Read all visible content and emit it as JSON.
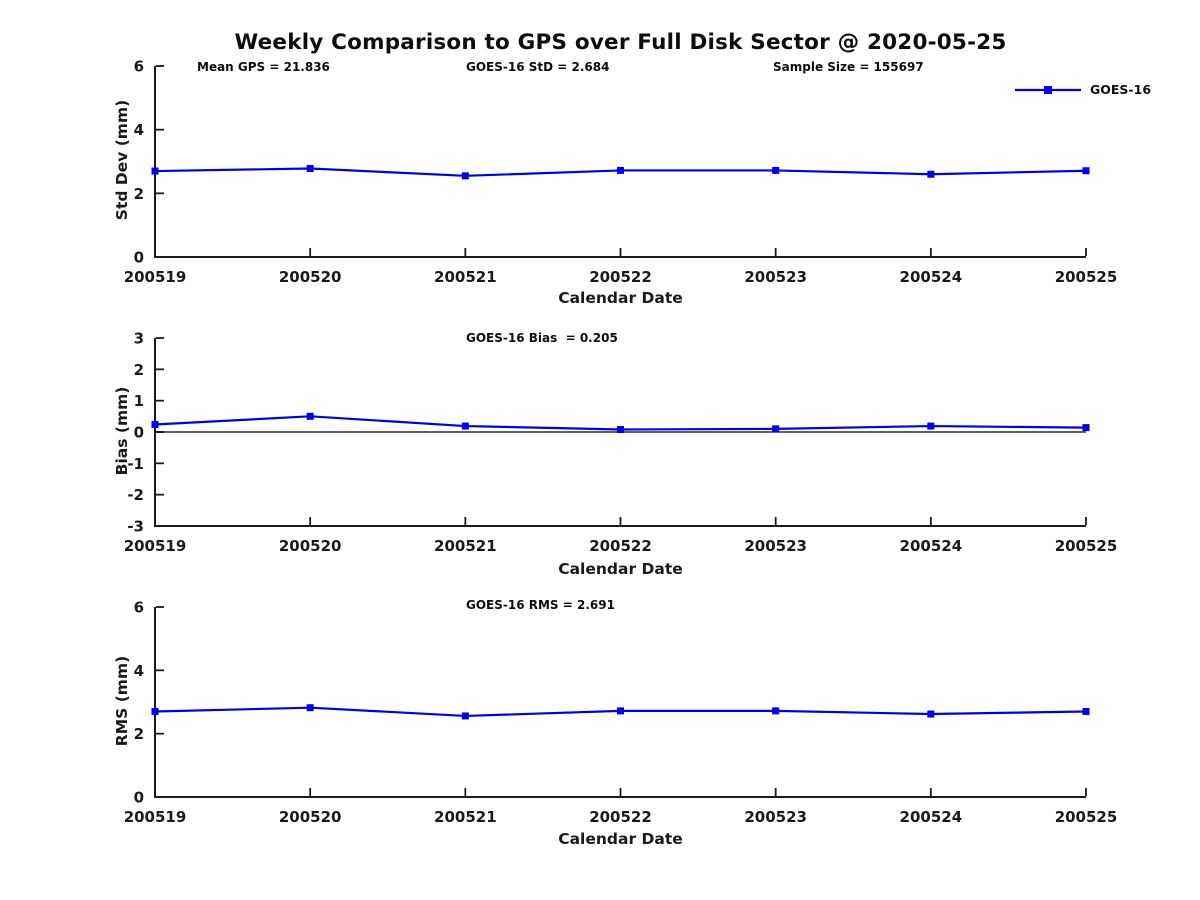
{
  "page": {
    "title": "Weekly Comparison to GPS over Full Disk Sector @ 2020-05-25"
  },
  "colors": {
    "series_blue": "#0000EE",
    "axis_black": "#1a1a1a",
    "zero_line_black": "#000000",
    "text_black": "#0d0d0d"
  },
  "chart_data": [
    {
      "type": "line",
      "name": "std-dev-panel",
      "annotations": {
        "left": "Mean GPS = 21.836",
        "center": "GOES-16 StD = 2.684",
        "right": "Sample Size = 155697"
      },
      "categories": [
        "200519",
        "200520",
        "200521",
        "200522",
        "200523",
        "200524",
        "200525"
      ],
      "series": [
        {
          "name": "GOES-16",
          "marker": "square",
          "values": [
            2.7,
            2.78,
            2.55,
            2.72,
            2.72,
            2.6,
            2.71
          ]
        }
      ],
      "xlabel": "Calendar Date",
      "ylabel": "Std Dev (mm)",
      "ylim": [
        0,
        6
      ],
      "yticks": [
        0,
        2,
        4,
        6
      ],
      "grid": false,
      "legend": {
        "label": "GOES-16",
        "position": "top-right"
      }
    },
    {
      "type": "line",
      "name": "bias-panel",
      "annotations": {
        "center": "GOES-16 Bias  = 0.205"
      },
      "categories": [
        "200519",
        "200520",
        "200521",
        "200522",
        "200523",
        "200524",
        "200525"
      ],
      "series": [
        {
          "name": "GOES-16",
          "marker": "square",
          "values": [
            0.24,
            0.5,
            0.19,
            0.08,
            0.1,
            0.19,
            0.14
          ]
        }
      ],
      "xlabel": "Calendar Date",
      "ylabel": "Bias (mm)",
      "ylim": [
        -3,
        3
      ],
      "yticks": [
        -3,
        -2,
        -1,
        0,
        1,
        2,
        3
      ],
      "zero_line": true,
      "grid": false
    },
    {
      "type": "line",
      "name": "rms-panel",
      "annotations": {
        "center": "GOES-16 RMS = 2.691"
      },
      "categories": [
        "200519",
        "200520",
        "200521",
        "200522",
        "200523",
        "200524",
        "200525"
      ],
      "series": [
        {
          "name": "GOES-16",
          "marker": "square",
          "values": [
            2.7,
            2.82,
            2.56,
            2.72,
            2.72,
            2.62,
            2.7
          ]
        }
      ],
      "xlabel": "Calendar Date",
      "ylabel": "RMS (mm)",
      "ylim": [
        0,
        6
      ],
      "yticks": [
        0,
        2,
        4,
        6
      ],
      "grid": false
    }
  ]
}
